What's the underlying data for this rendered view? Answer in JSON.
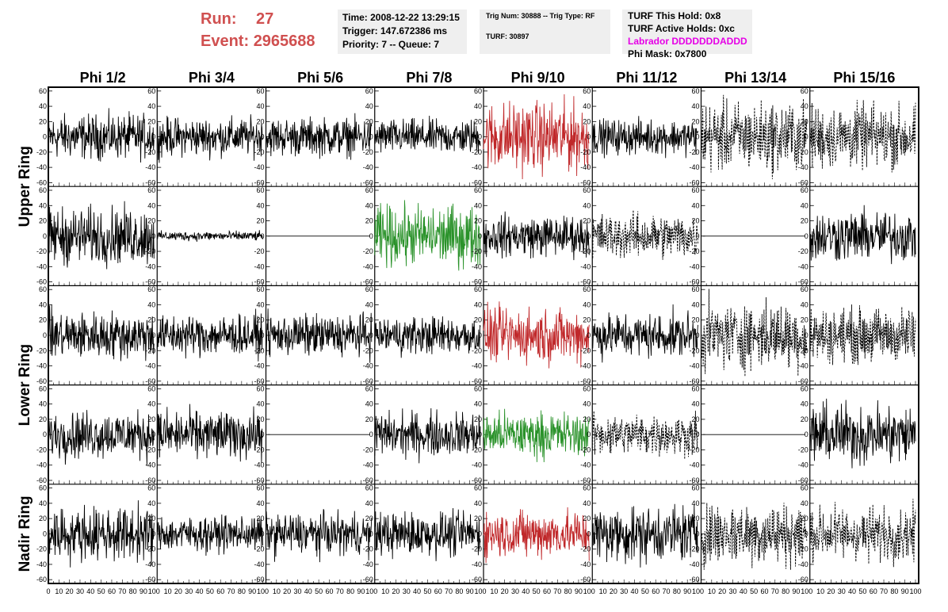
{
  "header": {
    "run_label": "Run:",
    "run_value": "27",
    "event_label": "Event:",
    "event_value": "2965688",
    "time_line": "Time: 2008-12-22 13:29:15",
    "trigger_line": "Trigger: 147.672386 ms",
    "priority_line": "Priority: 7 -- Queue: 7",
    "trig_line": "Trig Num: 30888 -- Trig Type: RF",
    "turf_line": "TURF: 30897",
    "turf_hold_line": "TURF This Hold: 0x8",
    "turf_active_line": "TURF Active Holds: 0xc",
    "labrador_line": "Labrador DDDDDDDADDD",
    "phi_mask_line": "Phi Mask: 0x7800"
  },
  "colors": {
    "run_text": "#d05050",
    "labrador_text": "#e600e6",
    "red_trace": "#c0282a",
    "green_trace": "#2a922a",
    "black_trace": "#000000"
  },
  "chart_data": {
    "type": "line",
    "columns": [
      "Phi 1/2",
      "Phi 3/4",
      "Phi 5/6",
      "Phi 7/8",
      "Phi 9/10",
      "Phi 11/12",
      "Phi 13/14",
      "Phi 15/16"
    ],
    "rows": [
      "Upper Ring",
      "Lower Ring",
      "Nadir Ring"
    ],
    "x_ticks": [
      "0",
      "10",
      "20",
      "30",
      "40",
      "50",
      "60",
      "70",
      "80",
      "90",
      "100"
    ],
    "y_ticks": [
      "60",
      "40",
      "20",
      "0",
      "-20",
      "-40",
      "-60"
    ],
    "xlim": [
      0,
      100
    ],
    "ylim": [
      -65,
      65
    ],
    "panels": [
      {
        "row": 0,
        "col": 0,
        "amp": 14,
        "style": "solid",
        "color": "black"
      },
      {
        "row": 0,
        "col": 1,
        "amp": 12,
        "style": "solid",
        "color": "black"
      },
      {
        "row": 0,
        "col": 2,
        "amp": 12,
        "style": "solid",
        "color": "black"
      },
      {
        "row": 0,
        "col": 3,
        "amp": 11,
        "style": "solid",
        "color": "black"
      },
      {
        "row": 0,
        "col": 4,
        "amp": 22,
        "style": "solid",
        "color": "red"
      },
      {
        "row": 0,
        "col": 5,
        "amp": 11,
        "style": "solid",
        "color": "black"
      },
      {
        "row": 0,
        "col": 6,
        "amp": 22,
        "style": "dashed",
        "color": "black"
      },
      {
        "row": 0,
        "col": 7,
        "amp": 20,
        "style": "dashed",
        "color": "black"
      },
      {
        "row": 1,
        "col": 0,
        "amp": 18,
        "style": "solid",
        "color": "black"
      },
      {
        "row": 1,
        "col": 1,
        "amp": 3,
        "style": "solid",
        "color": "black"
      },
      {
        "row": 1,
        "col": 2,
        "amp": 0,
        "style": "solid",
        "color": "black"
      },
      {
        "row": 1,
        "col": 3,
        "amp": 19,
        "style": "solid",
        "color": "green"
      },
      {
        "row": 1,
        "col": 4,
        "amp": 13,
        "style": "solid",
        "color": "black"
      },
      {
        "row": 1,
        "col": 5,
        "amp": 14,
        "style": "dashed",
        "color": "black"
      },
      {
        "row": 1,
        "col": 6,
        "amp": 0,
        "style": "solid",
        "color": "black"
      },
      {
        "row": 1,
        "col": 7,
        "amp": 16,
        "style": "solid",
        "color": "black"
      },
      {
        "row": 2,
        "col": 0,
        "amp": 15,
        "style": "solid",
        "color": "black"
      },
      {
        "row": 2,
        "col": 1,
        "amp": 13,
        "style": "solid",
        "color": "black"
      },
      {
        "row": 2,
        "col": 2,
        "amp": 13,
        "style": "solid",
        "color": "black"
      },
      {
        "row": 2,
        "col": 3,
        "amp": 12,
        "style": "solid",
        "color": "black"
      },
      {
        "row": 2,
        "col": 4,
        "amp": 17,
        "style": "solid",
        "color": "red"
      },
      {
        "row": 2,
        "col": 5,
        "amp": 14,
        "style": "solid",
        "color": "black"
      },
      {
        "row": 2,
        "col": 6,
        "amp": 21,
        "style": "dashed",
        "color": "black"
      },
      {
        "row": 2,
        "col": 7,
        "amp": 17,
        "style": "dashed",
        "color": "black"
      },
      {
        "row": 3,
        "col": 0,
        "amp": 15,
        "style": "solid",
        "color": "black"
      },
      {
        "row": 3,
        "col": 1,
        "amp": 15,
        "style": "solid",
        "color": "black"
      },
      {
        "row": 3,
        "col": 2,
        "amp": 0,
        "style": "solid",
        "color": "black"
      },
      {
        "row": 3,
        "col": 3,
        "amp": 14,
        "style": "solid",
        "color": "black"
      },
      {
        "row": 3,
        "col": 4,
        "amp": 14,
        "style": "solid",
        "color": "green"
      },
      {
        "row": 3,
        "col": 5,
        "amp": 13,
        "style": "dashed",
        "color": "black"
      },
      {
        "row": 3,
        "col": 6,
        "amp": 0,
        "style": "solid",
        "color": "black"
      },
      {
        "row": 3,
        "col": 7,
        "amp": 19,
        "style": "solid",
        "color": "black"
      },
      {
        "row": 4,
        "col": 0,
        "amp": 17,
        "style": "solid",
        "color": "black"
      },
      {
        "row": 4,
        "col": 1,
        "amp": 11,
        "style": "solid",
        "color": "black"
      },
      {
        "row": 4,
        "col": 2,
        "amp": 13,
        "style": "solid",
        "color": "black"
      },
      {
        "row": 4,
        "col": 3,
        "amp": 14,
        "style": "solid",
        "color": "black"
      },
      {
        "row": 4,
        "col": 4,
        "amp": 15,
        "style": "solid",
        "color": "red"
      },
      {
        "row": 4,
        "col": 5,
        "amp": 18,
        "style": "solid",
        "color": "black"
      },
      {
        "row": 4,
        "col": 6,
        "amp": 20,
        "style": "dashed",
        "color": "black"
      },
      {
        "row": 4,
        "col": 7,
        "amp": 17,
        "style": "dashed",
        "color": "black"
      }
    ]
  }
}
